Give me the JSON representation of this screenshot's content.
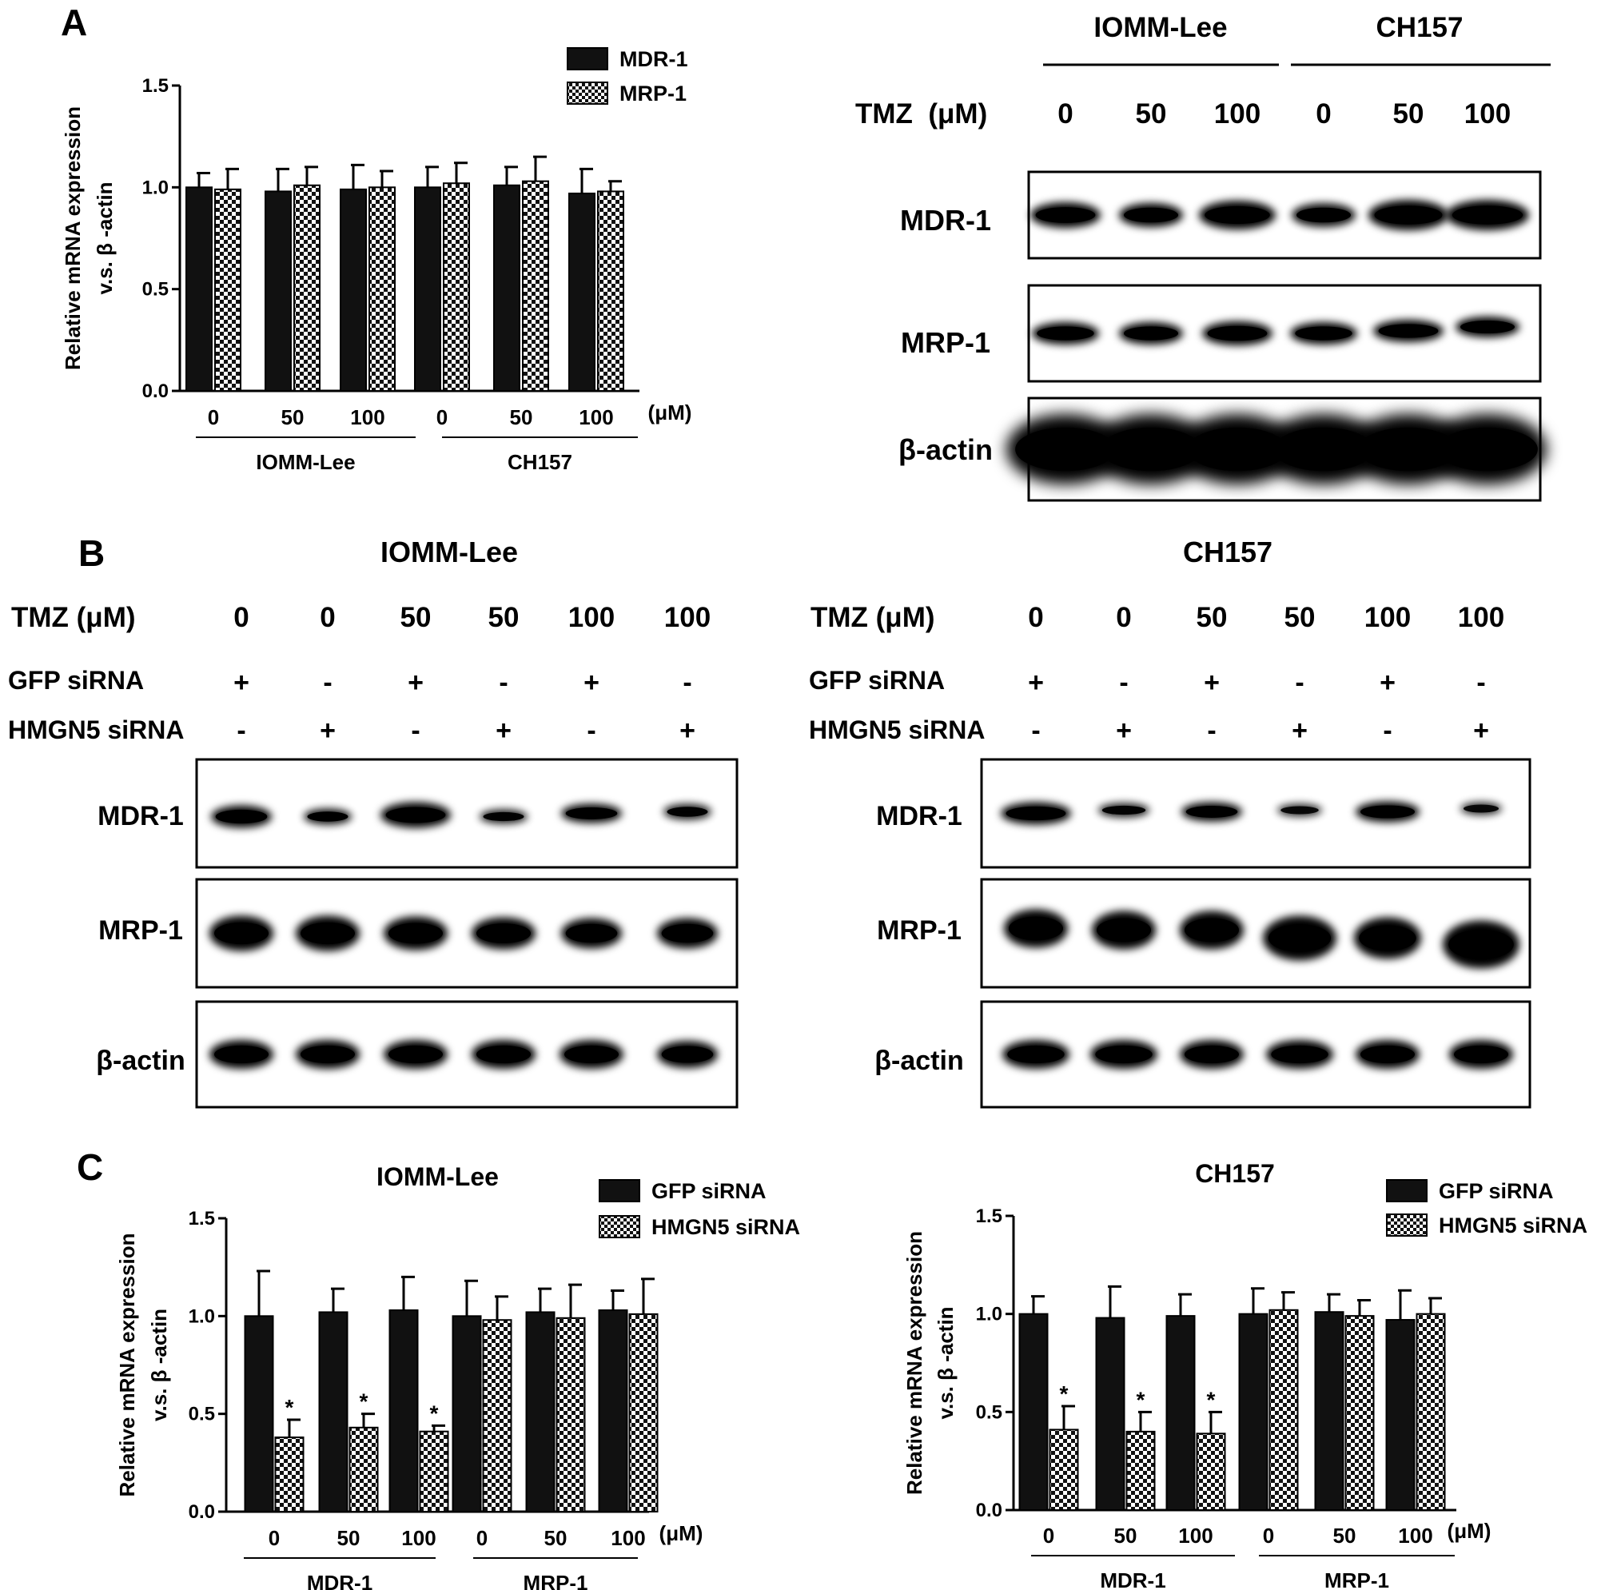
{
  "panels": {
    "a": {
      "letter": "A",
      "blot": {
        "groups": [
          "IOMM-Lee",
          "CH157"
        ],
        "tmz_label": "TMZ  (μM)",
        "doses": [
          "0",
          "50",
          "100",
          "0",
          "50",
          "100"
        ],
        "rows": [
          "MDR-1",
          "MRP-1",
          "β-actin"
        ]
      }
    },
    "b": {
      "letter": "B",
      "blots": [
        {
          "title": "IOMM-Lee",
          "tmz_label": "TMZ  (μM)",
          "doses": [
            "0",
            "0",
            "50",
            "50",
            "100",
            "100"
          ],
          "gfp_label": "GFP siRNA",
          "gfp": [
            "+",
            "-",
            "+",
            "-",
            "+",
            "-"
          ],
          "hmgn5_label": "HMGN5 siRNA",
          "hmgn5": [
            "-",
            "+",
            "-",
            "+",
            "-",
            "+"
          ],
          "rows": [
            "MDR-1",
            "MRP-1",
            "β-actin"
          ]
        },
        {
          "title": "CH157",
          "tmz_label": "TMZ  (μM)",
          "doses": [
            "0",
            "0",
            "50",
            "50",
            "100",
            "100"
          ],
          "gfp_label": "GFP siRNA",
          "gfp": [
            "+",
            "-",
            "+",
            "-",
            "+",
            "-"
          ],
          "hmgn5_label": "HMGN5 siRNA",
          "hmgn5": [
            "-",
            "+",
            "-",
            "+",
            "-",
            "+"
          ],
          "rows": [
            "MDR-1",
            "MRP-1",
            "β-actin"
          ]
        }
      ]
    },
    "c": {
      "letter": "C"
    }
  },
  "chart_data": [
    {
      "id": "A",
      "type": "bar",
      "title": "",
      "ylabel": "Relative mRNA expression v.s. β -actin",
      "ylim": [
        0,
        1.5
      ],
      "yticks": [
        "0.0",
        "0.5",
        "1.0",
        "1.5"
      ],
      "categories": [
        "0",
        "50",
        "100",
        "0",
        "50",
        "100"
      ],
      "unit": "(μM)",
      "groups": [
        {
          "label": "IOMM-Lee",
          "categories": [
            0,
            1,
            2
          ]
        },
        {
          "label": "CH157",
          "categories": [
            3,
            4,
            5
          ]
        }
      ],
      "legend_position": "top-right",
      "series": [
        {
          "name": "MDR-1",
          "pattern": "solid",
          "values": [
            1.0,
            0.98,
            0.99,
            1.0,
            1.01,
            0.97
          ],
          "errors": [
            0.07,
            0.11,
            0.12,
            0.1,
            0.09,
            0.12
          ]
        },
        {
          "name": "MRP-1",
          "pattern": "checker",
          "values": [
            0.99,
            1.01,
            1.0,
            1.02,
            1.03,
            0.98
          ],
          "errors": [
            0.1,
            0.09,
            0.08,
            0.1,
            0.12,
            0.05
          ]
        }
      ]
    },
    {
      "id": "C-left",
      "type": "bar",
      "title": "IOMM-Lee",
      "ylabel": "Relative mRNA expression v.s. β -actin",
      "ylim": [
        0,
        1.5
      ],
      "yticks": [
        "0.0",
        "0.5",
        "1.0",
        "1.5"
      ],
      "categories": [
        "0",
        "50",
        "100",
        "0",
        "50",
        "100"
      ],
      "unit": "(μM)",
      "groups": [
        {
          "label": "MDR-1",
          "categories": [
            0,
            1,
            2
          ]
        },
        {
          "label": "MRP-1",
          "categories": [
            3,
            4,
            5
          ]
        }
      ],
      "legend_position": "top-right",
      "series": [
        {
          "name": "GFP siRNA",
          "pattern": "solid",
          "values": [
            1.0,
            1.02,
            1.03,
            1.0,
            1.02,
            1.03
          ],
          "errors": [
            0.23,
            0.12,
            0.17,
            0.18,
            0.12,
            0.1
          ]
        },
        {
          "name": "HMGN5 siRNA",
          "pattern": "checker",
          "values": [
            0.38,
            0.43,
            0.41,
            0.98,
            0.99,
            1.01
          ],
          "errors": [
            0.09,
            0.07,
            0.03,
            0.12,
            0.17,
            0.18
          ]
        }
      ],
      "annotations": [
        {
          "series": 1,
          "category": 0,
          "text": "*"
        },
        {
          "series": 1,
          "category": 1,
          "text": "*"
        },
        {
          "series": 1,
          "category": 2,
          "text": "*"
        }
      ]
    },
    {
      "id": "C-right",
      "type": "bar",
      "title": "CH157",
      "ylabel": "Relative mRNA expression v.s. β -actin",
      "ylim": [
        0,
        1.5
      ],
      "yticks": [
        "0.0",
        "0.5",
        "1.0",
        "1.5"
      ],
      "categories": [
        "0",
        "50",
        "100",
        "0",
        "50",
        "100"
      ],
      "unit": "(μM)",
      "groups": [
        {
          "label": "MDR-1",
          "categories": [
            0,
            1,
            2
          ]
        },
        {
          "label": "MRP-1",
          "categories": [
            3,
            4,
            5
          ]
        }
      ],
      "legend_position": "top-right",
      "series": [
        {
          "name": "GFP siRNA",
          "pattern": "solid",
          "values": [
            1.0,
            0.98,
            0.99,
            1.0,
            1.01,
            0.97
          ],
          "errors": [
            0.09,
            0.16,
            0.11,
            0.13,
            0.09,
            0.15
          ]
        },
        {
          "name": "HMGN5 siRNA",
          "pattern": "checker",
          "values": [
            0.41,
            0.4,
            0.39,
            1.02,
            0.99,
            1.0
          ],
          "errors": [
            0.12,
            0.1,
            0.11,
            0.09,
            0.08,
            0.08
          ]
        }
      ],
      "annotations": [
        {
          "series": 1,
          "category": 0,
          "text": "*"
        },
        {
          "series": 1,
          "category": 1,
          "text": "*"
        },
        {
          "series": 1,
          "category": 2,
          "text": "*"
        }
      ]
    }
  ]
}
